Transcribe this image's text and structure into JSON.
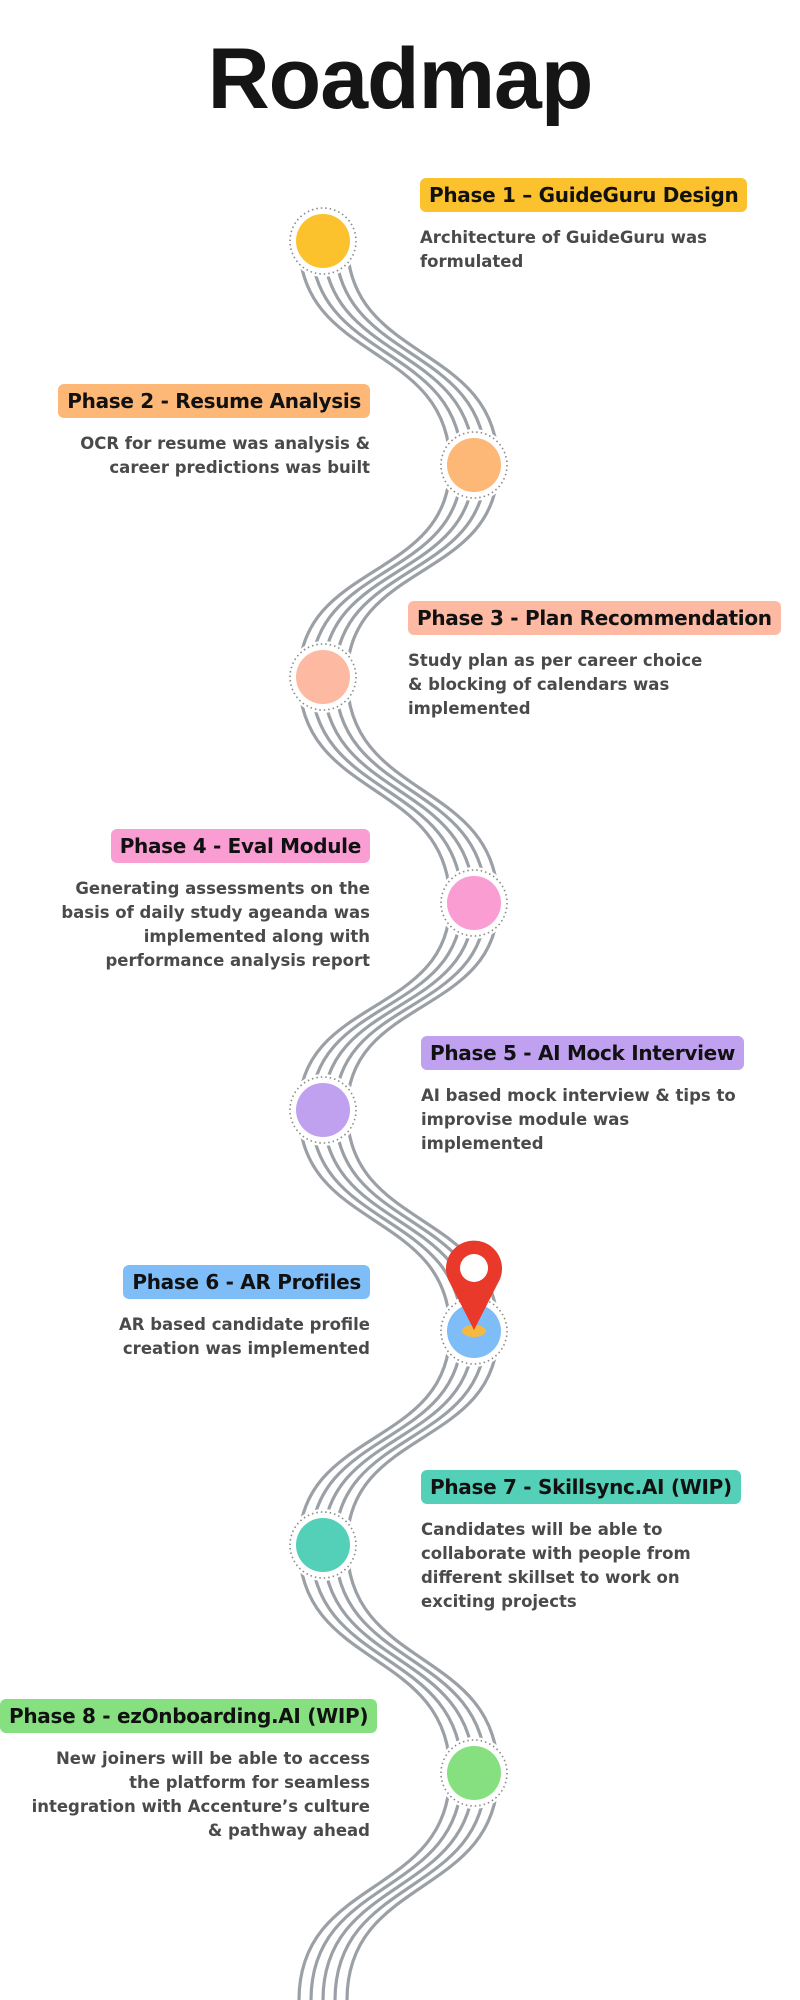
{
  "title": "Roadmap",
  "phases": [
    {
      "label": "Phase 1 – GuideGuru Design",
      "description": "Architecture of GuideGuru was formulated",
      "color": "#FBC22D"
    },
    {
      "label": "Phase 2 - Resume Analysis",
      "description": "OCR for resume was analysis & career predictions was built",
      "color": "#FDB777"
    },
    {
      "label": "Phase 3 - Plan Recommendation",
      "description": "Study plan as per career choice & blocking of calendars was implemented",
      "color": "#FDB9A2"
    },
    {
      "label": "Phase 4 - Eval Module",
      "description": "Generating assessments on the basis of daily study ageanda was implemented along with performance analysis report",
      "color": "#F99DD3"
    },
    {
      "label": "Phase 5 - AI Mock Interview",
      "description": "AI based mock interview & tips to improvise module was implemented",
      "color": "#BFA1F0"
    },
    {
      "label": "Phase 6 - AR Profiles",
      "description": "AR based candidate profile creation was implemented",
      "color": "#7FBDF8"
    },
    {
      "label": "Phase 7 - Skillsync.AI (WIP)",
      "description": "Candidates will be able to collaborate with people from different skillset to work on exciting projects",
      "color": "#55D0B8"
    },
    {
      "label": "Phase 8 - ezOnboarding.AI (WIP)",
      "description": "New joiners will be able to access the platform for seamless integration with Accenture’s culture & pathway ahead",
      "color": "#86E07F"
    }
  ],
  "current_phase": 6,
  "pin_color": "#E8392A",
  "road_color": "#9AA0A6"
}
